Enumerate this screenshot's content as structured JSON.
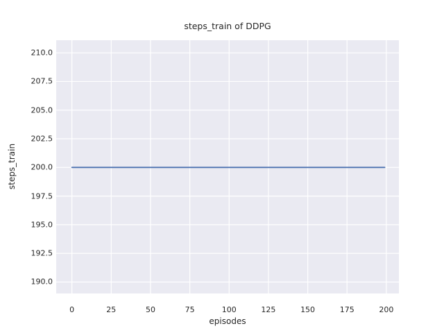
{
  "title": "steps_train of DDPG",
  "chart_data": {
    "type": "line",
    "title": "steps_train of DDPG",
    "xlabel": "episodes",
    "ylabel": "steps_train",
    "x_ticks": [
      0,
      25,
      50,
      75,
      100,
      125,
      150,
      175,
      200
    ],
    "x_tick_labels": [
      "0",
      "25",
      "50",
      "75",
      "100",
      "125",
      "150",
      "175",
      "200"
    ],
    "y_ticks": [
      190.0,
      192.5,
      195.0,
      197.5,
      200.0,
      202.5,
      205.0,
      207.5,
      210.0
    ],
    "y_tick_labels": [
      "190.0",
      "192.5",
      "195.0",
      "197.5",
      "200.0",
      "202.5",
      "205.0",
      "207.5",
      "210.0"
    ],
    "xlim": [
      -10,
      208
    ],
    "ylim": [
      189.0,
      211.1
    ],
    "grid": true,
    "legend_position": "none",
    "series": [
      {
        "name": "steps_train",
        "x": [
          0,
          199
        ],
        "y": [
          200,
          200
        ],
        "color": "#4c72b0"
      }
    ],
    "colors": {
      "plot_background": "#eaeaf2",
      "grid": "#ffffff",
      "text": "#262626",
      "figure_background": "#ffffff"
    }
  }
}
